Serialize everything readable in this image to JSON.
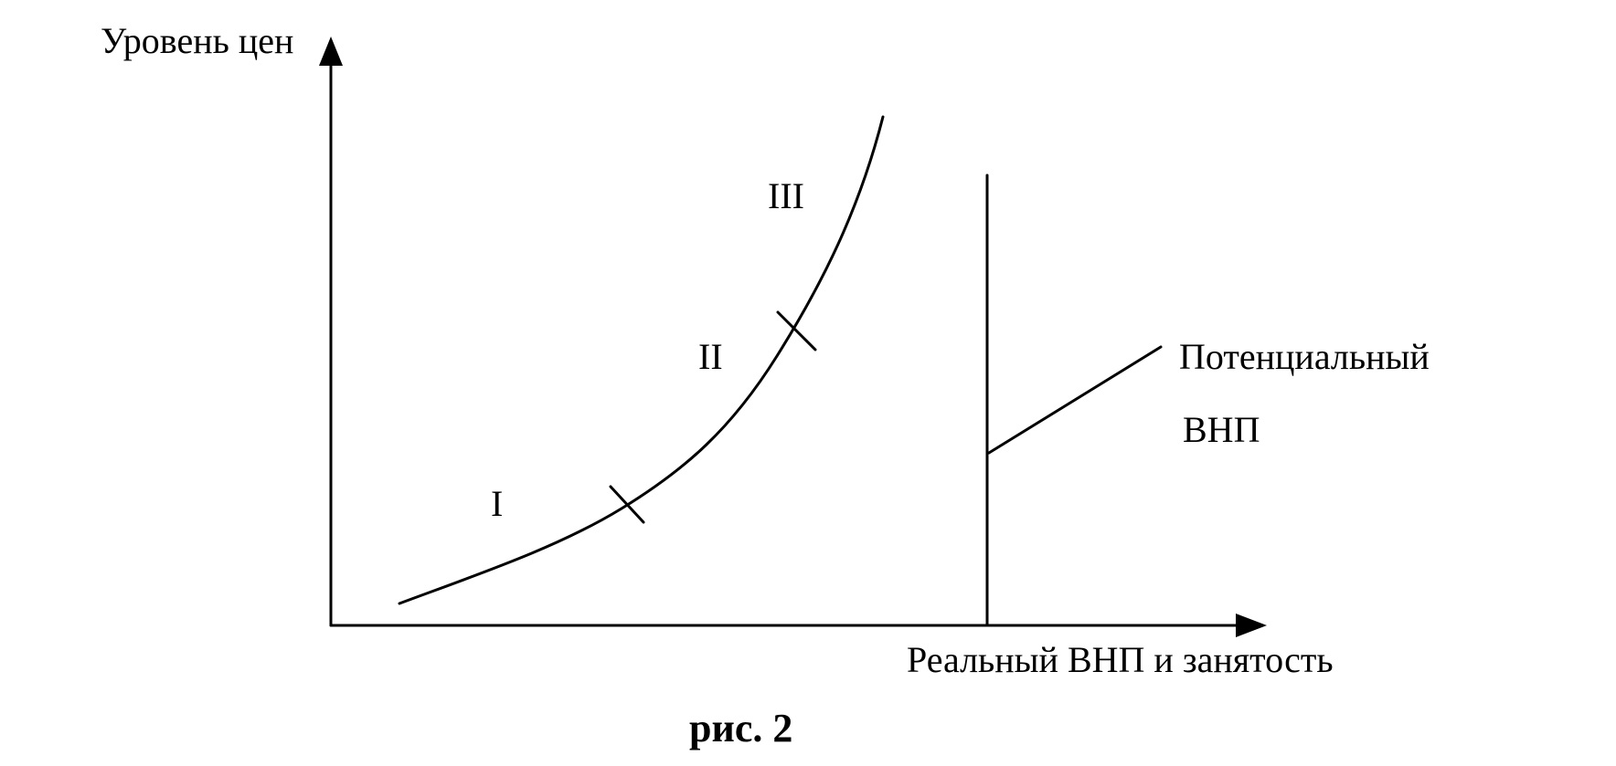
{
  "figure": {
    "y_axis_label": "Уровень цен",
    "x_axis_label": "Реальный ВНП и занятость",
    "segment_labels": [
      "I",
      "II",
      "III"
    ],
    "potential_label_line1": "Потенциальный",
    "potential_label_line2": "ВНП",
    "caption": "рис. 2",
    "colors": {
      "ink": "#000000",
      "background": "#ffffff"
    }
  }
}
